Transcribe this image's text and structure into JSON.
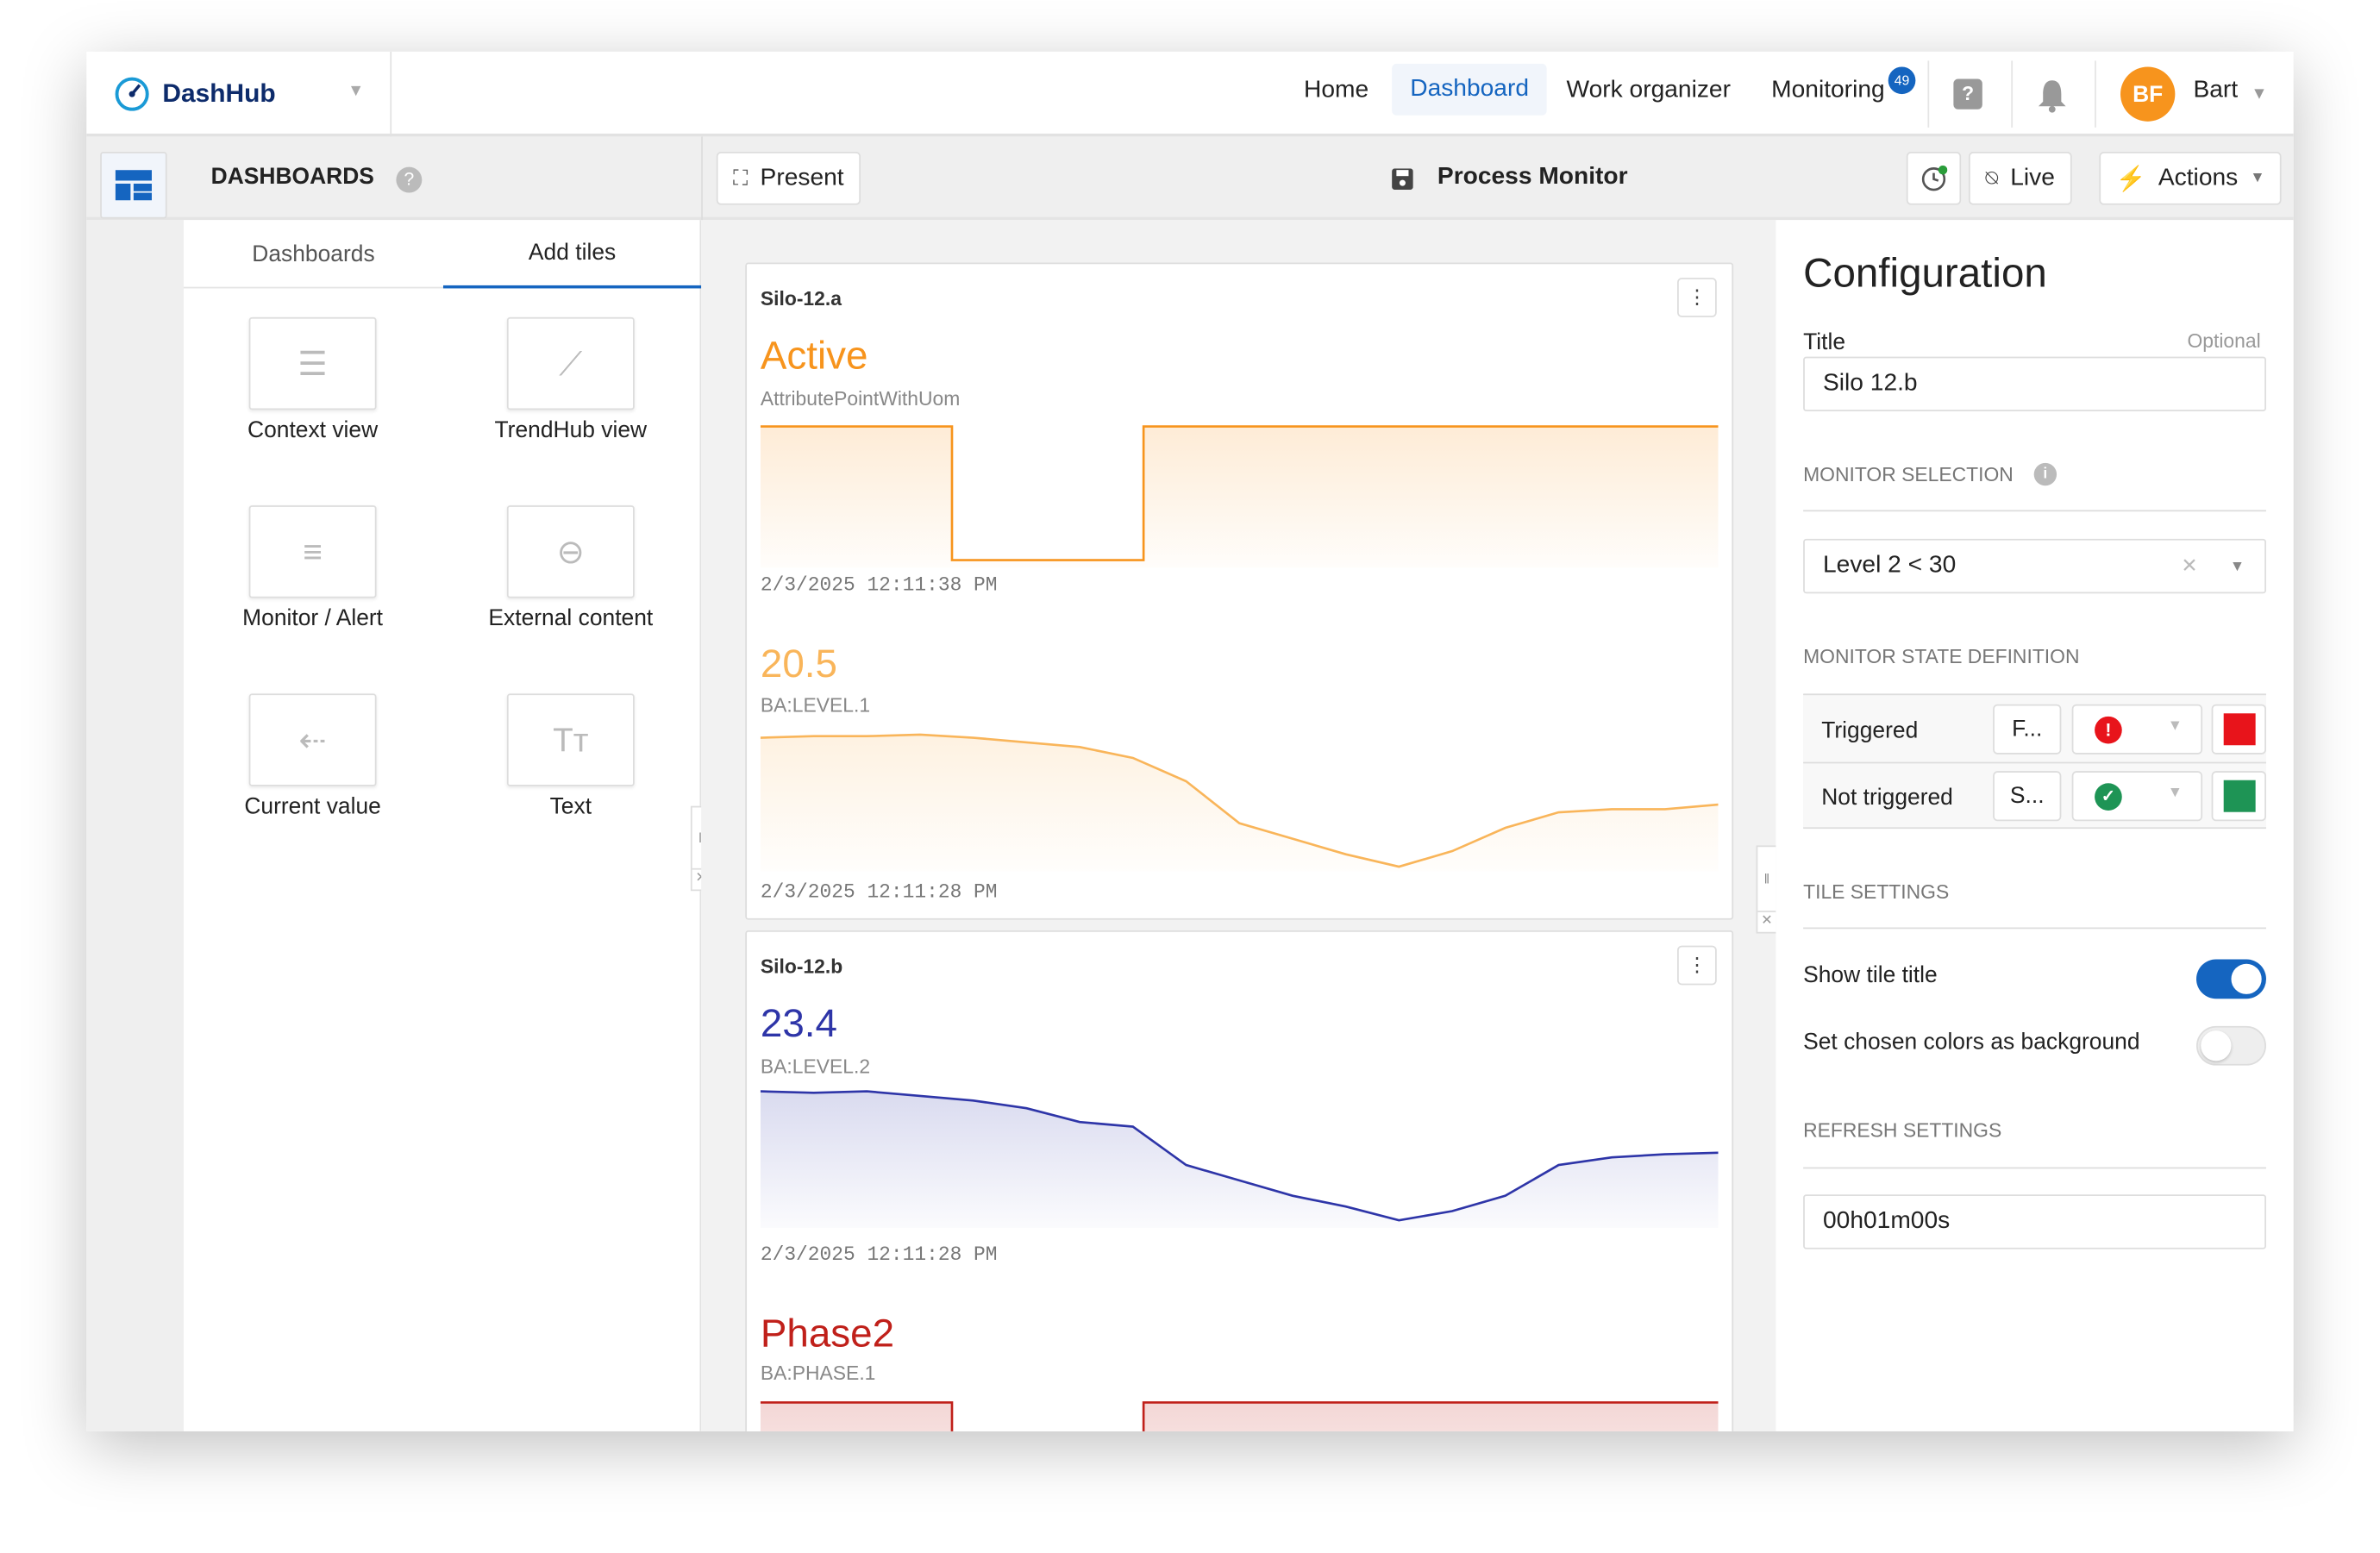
{
  "app": {
    "name": "DashHub"
  },
  "nav": {
    "items": [
      "Home",
      "Dashboard",
      "Work organizer",
      "Monitoring"
    ],
    "active": "Dashboard",
    "monitoring_badge": "49",
    "user_initials": "BF",
    "user_name": "Bart",
    "accent": "#1565c0",
    "avatar_color": "#f7941d"
  },
  "toolbar": {
    "section_title": "DASHBOARDS",
    "present_label": "Present",
    "dashboard_title": "Process Monitor",
    "live_label": "Live",
    "actions_label": "Actions"
  },
  "left_panel": {
    "tabs": [
      "Dashboards",
      "Add tiles"
    ],
    "active_tab": "Add tiles",
    "tiles": [
      "Context view",
      "TrendHub view",
      "Monitor / Alert",
      "External content",
      "Current value",
      "Text"
    ]
  },
  "cards": [
    {
      "title": "Silo-12.a",
      "blocks": [
        {
          "value": "Active",
          "label": "AttributePointWithUom",
          "timestamp": "2/3/2025 12:11:38 PM",
          "color": "#f7941d",
          "type": "step",
          "values": [
            1,
            1,
            0,
            0,
            1,
            1,
            1,
            1,
            1,
            1
          ]
        },
        {
          "value": "20.5",
          "label": "BA:LEVEL.1",
          "timestamp": "2/3/2025 12:11:28 PM",
          "color": "#f9b55a",
          "type": "line",
          "values": [
            22.65,
            22.7,
            22.7,
            22.75,
            22.65,
            22.5,
            22.35,
            22.0,
            21.25,
            19.9,
            19.4,
            18.9,
            18.5,
            19.0,
            19.75,
            20.25,
            20.35,
            20.35,
            20.5
          ]
        }
      ]
    },
    {
      "title": "Silo-12.b",
      "blocks": [
        {
          "value": "23.4",
          "label": "BA:LEVEL.2",
          "timestamp": "2/3/2025 12:11:28 PM",
          "color": "#2e35a8",
          "type": "line",
          "values": [
            25.4,
            25.35,
            25.4,
            25.25,
            25.1,
            24.85,
            24.4,
            24.25,
            23.0,
            22.5,
            22.0,
            21.65,
            21.2,
            21.5,
            22.0,
            23.0,
            23.25,
            23.35,
            23.4
          ]
        },
        {
          "value": "Phase2",
          "label": "BA:PHASE.1",
          "color": "#c0201a",
          "type": "step",
          "values": [
            1,
            1,
            0,
            0,
            1,
            1,
            1,
            1,
            1,
            1
          ]
        }
      ]
    }
  ],
  "config": {
    "heading": "Configuration",
    "title_label": "Title",
    "optional_label": "Optional",
    "title_value": "Silo 12.b",
    "monitor_selection_label": "MONITOR SELECTION",
    "monitor_value": "Level 2 < 30",
    "state_def_label": "MONITOR STATE DEFINITION",
    "states": [
      {
        "name": "Triggered",
        "short": "F...",
        "icon": "alert-icon",
        "color": "#e8141b"
      },
      {
        "name": "Not triggered",
        "short": "S...",
        "icon": "check-icon",
        "color": "#1e9455"
      }
    ],
    "tile_settings_label": "TILE SETTINGS",
    "show_title_label": "Show tile title",
    "show_title_on": true,
    "bg_colors_label": "Set chosen colors as background",
    "bg_colors_on": false,
    "refresh_label": "REFRESH SETTINGS",
    "refresh_value": "00h01m00s"
  }
}
